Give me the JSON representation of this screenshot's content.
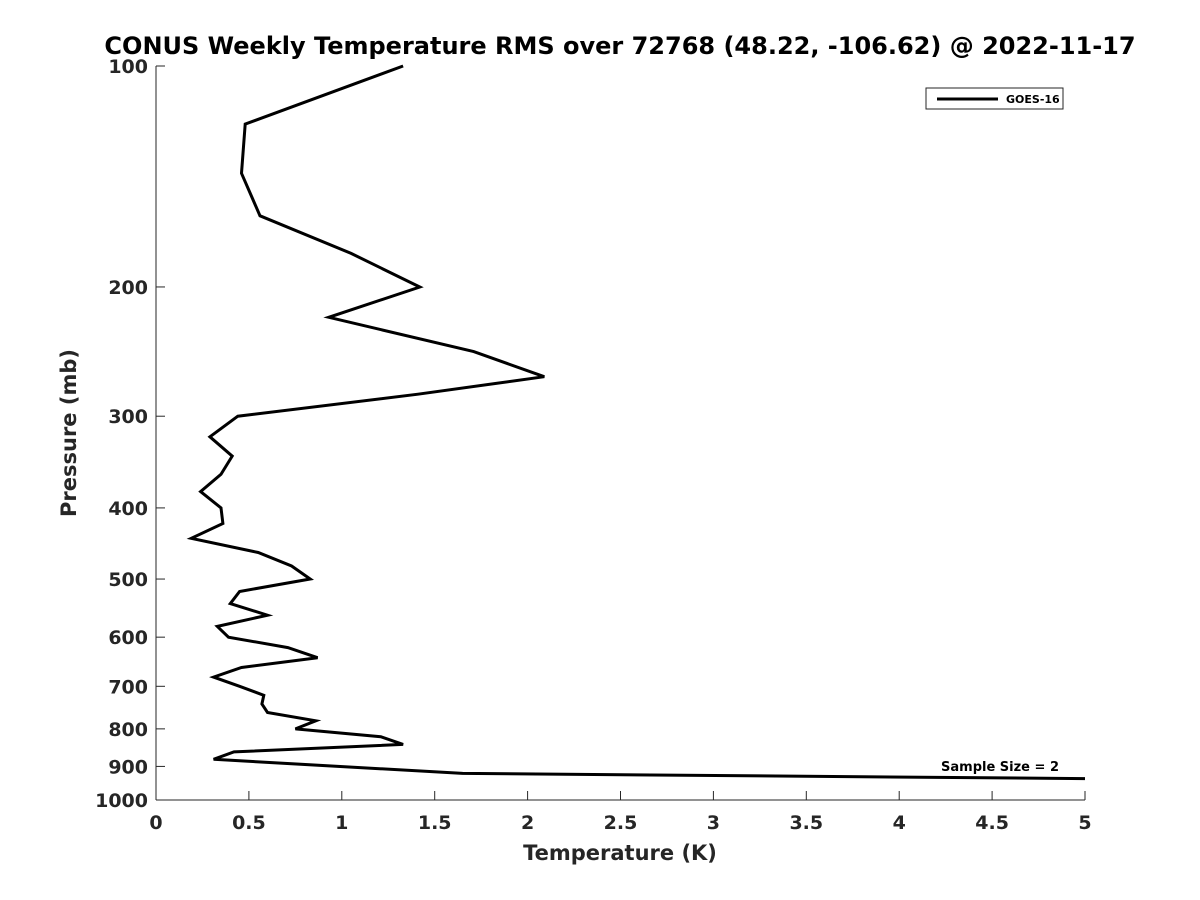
{
  "chart_data": {
    "type": "line",
    "title": "CONUS Weekly Temperature RMS over 72768 (48.22, -106.62) @ 2022-11-17",
    "xlabel": "Temperature (K)",
    "ylabel": "Pressure (mb)",
    "xlim": [
      0,
      5
    ],
    "ylim": [
      1000,
      100
    ],
    "yscale": "log",
    "y_reversed": true,
    "grid": false,
    "legend_position": "top-right",
    "xticks": [
      0,
      0.5,
      1,
      1.5,
      2,
      2.5,
      3,
      3.5,
      4,
      4.5,
      5
    ],
    "xtick_labels": [
      "0",
      "0.5",
      "1",
      "1.5",
      "2",
      "2.5",
      "3",
      "3.5",
      "4",
      "4.5",
      "5"
    ],
    "yticks": [
      100,
      200,
      300,
      400,
      500,
      600,
      700,
      800,
      900,
      1000
    ],
    "ytick_labels": [
      "100",
      "200",
      "300",
      "400",
      "500",
      "600",
      "700",
      "800",
      "900",
      "1000"
    ],
    "series": [
      {
        "name": "GOES-16",
        "color": "#000000",
        "x": [
          1.33,
          0.48,
          0.46,
          0.56,
          1.05,
          1.42,
          0.93,
          1.71,
          2.09,
          1.41,
          0.44,
          0.29,
          0.41,
          0.35,
          0.24,
          0.35,
          0.36,
          0.19,
          0.55,
          0.73,
          0.83,
          0.45,
          0.4,
          0.6,
          0.33,
          0.39,
          0.71,
          0.87,
          0.46,
          0.31,
          0.45,
          0.58,
          0.57,
          0.6,
          0.86,
          0.75,
          1.21,
          1.33,
          0.42,
          0.31,
          1.65,
          5.0
        ],
        "y": [
          100,
          120,
          140,
          160,
          180,
          200,
          220,
          245,
          265,
          280,
          300,
          320,
          340,
          360,
          380,
          400,
          420,
          440,
          460,
          480,
          500,
          520,
          540,
          560,
          580,
          600,
          620,
          640,
          660,
          680,
          700,
          720,
          740,
          760,
          780,
          800,
          820,
          840,
          860,
          880,
          920,
          935
        ]
      }
    ],
    "annotations": [
      "Sample Size = 2"
    ]
  }
}
